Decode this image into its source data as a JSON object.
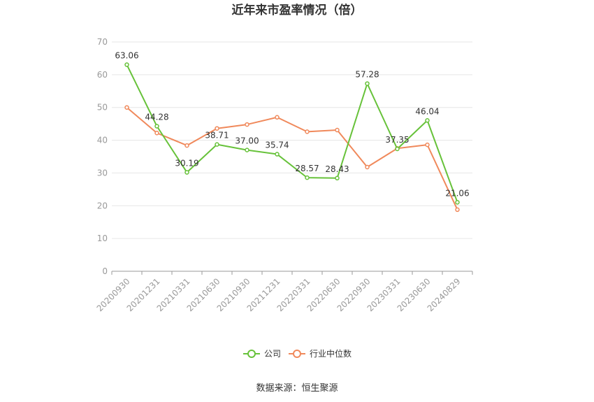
{
  "chart_data": {
    "type": "line",
    "title": "近年来市盈率情况（倍）",
    "categories": [
      "20200930",
      "20201231",
      "20210331",
      "20210630",
      "20210930",
      "20211231",
      "20220331",
      "20220630",
      "20220930",
      "20230331",
      "20230630",
      "20240829"
    ],
    "ylim": [
      0,
      70
    ],
    "yticks": [
      0,
      10,
      20,
      30,
      40,
      50,
      60,
      70
    ],
    "grid": true,
    "legend_position": "bottom",
    "series": [
      {
        "name": "公司",
        "color": "#67c23a",
        "values": [
          63.06,
          44.28,
          30.19,
          38.71,
          37.0,
          35.74,
          28.57,
          28.43,
          57.28,
          37.35,
          46.04,
          21.06
        ],
        "labels": [
          "63.06",
          "44.28",
          "30.19",
          "38.71",
          "37.00",
          "35.74",
          "28.57",
          "28.43",
          "57.28",
          "37.35",
          "46.04",
          "21.06"
        ]
      },
      {
        "name": "行业中位数",
        "color": "#f0895b",
        "values": [
          50.0,
          42.2,
          38.4,
          43.6,
          44.8,
          47.0,
          42.6,
          43.1,
          31.8,
          37.5,
          38.6,
          18.8
        ]
      }
    ],
    "source": "数据来源：恒生聚源"
  }
}
